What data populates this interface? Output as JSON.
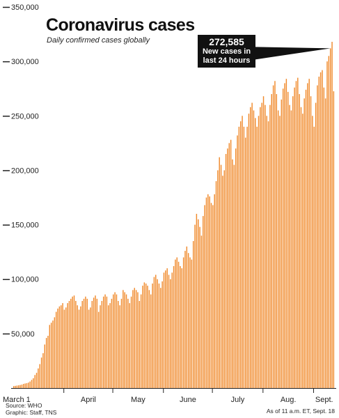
{
  "header": {
    "title": "Coronavirus cases",
    "subtitle": "Daily confirmed cases globally"
  },
  "callout": {
    "value": "272,585",
    "line1": "New cases in",
    "line2": "last 24 hours"
  },
  "footer": {
    "source": "Source: WHO",
    "graphic": "Graphic: Staff, TNS",
    "as_of": "As of 11 a.m. ET, Sept. 18"
  },
  "colors": {
    "bar": "#F08A2C",
    "text": "#111111",
    "callout_bg": "#111111"
  },
  "chart_data": {
    "type": "bar",
    "title": "Coronavirus cases",
    "subtitle": "Daily confirmed cases globally",
    "ylim": [
      0,
      350000
    ],
    "y_ticks": [
      50000,
      100000,
      150000,
      200000,
      250000,
      300000,
      350000
    ],
    "y_tick_labels": [
      "50,000",
      "100,000",
      "150,000",
      "200,000",
      "250,000",
      "300,000",
      "350,000"
    ],
    "x_tick_labels": [
      {
        "label": "March 1",
        "day_index": 0
      },
      {
        "label": "April",
        "day_index": 31
      },
      {
        "label": "May",
        "day_index": 61
      },
      {
        "label": "June",
        "day_index": 92
      },
      {
        "label": "July",
        "day_index": 122
      },
      {
        "label": "Aug.",
        "day_index": 153
      },
      {
        "label": "Sept.",
        "day_index": 184
      }
    ],
    "grid": false,
    "legend": "none",
    "annotation": {
      "text": "272,585 New cases in last 24 hours",
      "day_index": 201
    },
    "series": [
      {
        "values": [
          1800,
          2000,
          2300,
          2500,
          2800,
          3200,
          3800,
          4200,
          4500,
          5000,
          6000,
          7500,
          9000,
          12000,
          14000,
          18000,
          22000,
          28000,
          32000,
          40000,
          46000,
          48000,
          58000,
          60000,
          62000,
          65000,
          70000,
          73000,
          75000,
          76000,
          78000,
          72000,
          74000,
          78000,
          80000,
          82000,
          84000,
          85000,
          80000,
          76000,
          72000,
          75000,
          80000,
          82000,
          84000,
          82000,
          72000,
          74000,
          80000,
          83000,
          85000,
          82000,
          70000,
          76000,
          80000,
          84000,
          86000,
          84000,
          76000,
          78000,
          82000,
          86000,
          88000,
          86000,
          80000,
          76000,
          82000,
          90000,
          88000,
          86000,
          82000,
          78000,
          84000,
          90000,
          92000,
          90000,
          88000,
          80000,
          86000,
          94000,
          97000,
          96000,
          94000,
          90000,
          86000,
          96000,
          102000,
          104000,
          100000,
          96000,
          92000,
          98000,
          106000,
          108000,
          110000,
          104000,
          100000,
          106000,
          112000,
          118000,
          120000,
          116000,
          112000,
          110000,
          120000,
          126000,
          130000,
          124000,
          120000,
          118000,
          135000,
          150000,
          160000,
          155000,
          148000,
          140000,
          158000,
          168000,
          175000,
          178000,
          176000,
          170000,
          168000,
          178000,
          190000,
          200000,
          212000,
          205000,
          195000,
          200000,
          215000,
          220000,
          225000,
          228000,
          210000,
          205000,
          220000,
          232000,
          240000,
          245000,
          250000,
          240000,
          230000,
          240000,
          252000,
          258000,
          262000,
          255000,
          248000,
          240000,
          250000,
          258000,
          262000,
          268000,
          260000,
          250000,
          245000,
          260000,
          270000,
          278000,
          282000,
          270000,
          255000,
          250000,
          265000,
          275000,
          280000,
          284000,
          272000,
          260000,
          255000,
          268000,
          276000,
          282000,
          285000,
          270000,
          258000,
          252000,
          266000,
          274000,
          280000,
          284000,
          268000,
          250000,
          240000,
          262000,
          278000,
          286000,
          290000,
          292000,
          276000,
          266000,
          300000,
          305000,
          312000,
          318000,
          272585
        ]
      }
    ]
  }
}
